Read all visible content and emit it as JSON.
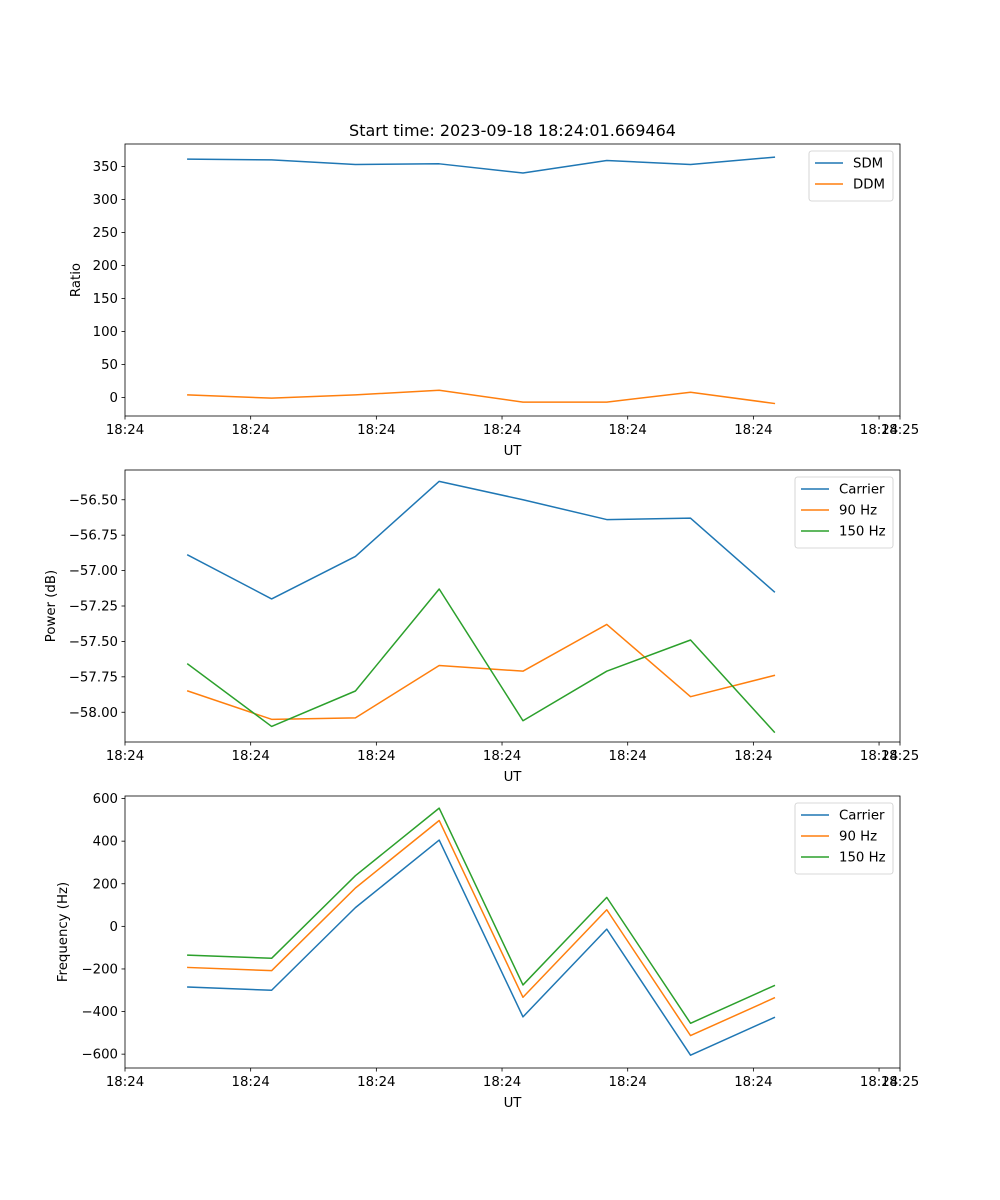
{
  "chart_data": [
    {
      "type": "line",
      "title": "Start time: 2023-09-18 18:24:01.669464",
      "xlabel": "UT",
      "ylabel": "Ratio",
      "xlim": [
        0,
        9.25
      ],
      "ylim": [
        -28,
        384
      ],
      "x": [
        0.75,
        1.75,
        2.75,
        3.75,
        4.75,
        5.75,
        6.75,
        7.75
      ],
      "xticks": [
        0,
        1.5,
        3,
        4.5,
        6,
        7.5,
        9
      ],
      "xtick_labels": [
        "18:24",
        "18:24",
        "18:24",
        "18:24",
        "18:24",
        "18:24",
        "18:24"
      ],
      "x_end_label": "18:25",
      "yticks": [
        0,
        50,
        100,
        150,
        200,
        250,
        300,
        350
      ],
      "ytick_labels": [
        "0",
        "50",
        "100",
        "150",
        "200",
        "250",
        "300",
        "350"
      ],
      "legend_loc": "top-right",
      "series": [
        {
          "name": "SDM",
          "color": "#1f77b4",
          "values": [
            361,
            360,
            353,
            354,
            340,
            359,
            353,
            364
          ]
        },
        {
          "name": "DDM",
          "color": "#ff7f0e",
          "values": [
            4,
            -1,
            4,
            11,
            -7,
            -7,
            8,
            -9
          ]
        }
      ]
    },
    {
      "type": "line",
      "title": "",
      "xlabel": "UT",
      "ylabel": "Power (dB)",
      "xlim": [
        0,
        9.25
      ],
      "ylim": [
        -58.21,
        -56.29
      ],
      "x": [
        0.75,
        1.75,
        2.75,
        3.75,
        4.75,
        5.75,
        6.75,
        7.75
      ],
      "xticks": [
        0,
        1.5,
        3,
        4.5,
        6,
        7.5,
        9
      ],
      "xtick_labels": [
        "18:24",
        "18:24",
        "18:24",
        "18:24",
        "18:24",
        "18:24",
        "18:24"
      ],
      "x_end_label": "18:25",
      "yticks": [
        -58.0,
        -57.75,
        -57.5,
        -57.25,
        -57.0,
        -56.75,
        -56.5
      ],
      "ytick_labels": [
        "−58.00",
        "−57.75",
        "−57.50",
        "−57.25",
        "−57.00",
        "−56.75",
        "−56.50"
      ],
      "legend_loc": "top-right",
      "series": [
        {
          "name": "Carrier",
          "color": "#1f77b4",
          "values": [
            -56.89,
            -57.2,
            -56.9,
            -56.37,
            -56.5,
            -56.64,
            -56.63,
            -57.15
          ]
        },
        {
          "name": "90 Hz",
          "color": "#ff7f0e",
          "values": [
            -57.85,
            -58.05,
            -58.04,
            -57.67,
            -57.71,
            -57.38,
            -57.89,
            -57.74
          ]
        },
        {
          "name": "150 Hz",
          "color": "#2ca02c",
          "values": [
            -57.66,
            -58.1,
            -57.85,
            -57.13,
            -58.06,
            -57.71,
            -57.49,
            -58.14
          ]
        }
      ]
    },
    {
      "type": "line",
      "title": "",
      "xlabel": "UT",
      "ylabel": "Frequency (Hz)",
      "xlim": [
        0,
        9.25
      ],
      "ylim": [
        -665,
        612
      ],
      "x": [
        0.75,
        1.75,
        2.75,
        3.75,
        4.75,
        5.75,
        6.75,
        7.75
      ],
      "xticks": [
        0,
        1.5,
        3,
        4.5,
        6,
        7.5,
        9
      ],
      "xtick_labels": [
        "18:24",
        "18:24",
        "18:24",
        "18:24",
        "18:24",
        "18:24",
        "18:24"
      ],
      "x_end_label": "18:25",
      "yticks": [
        -600,
        -400,
        -200,
        0,
        200,
        400,
        600
      ],
      "ytick_labels": [
        "−600",
        "−400",
        "−200",
        "0",
        "200",
        "400",
        "600"
      ],
      "legend_loc": "top-right",
      "series": [
        {
          "name": "Carrier",
          "color": "#1f77b4",
          "values": [
            -285,
            -300,
            88,
            405,
            -425,
            -13,
            -605,
            -428
          ]
        },
        {
          "name": "90 Hz",
          "color": "#ff7f0e",
          "values": [
            -193,
            -208,
            180,
            497,
            -333,
            78,
            -513,
            -336
          ]
        },
        {
          "name": "150 Hz",
          "color": "#2ca02c",
          "values": [
            -135,
            -150,
            238,
            555,
            -275,
            136,
            -455,
            -278
          ]
        }
      ]
    }
  ]
}
